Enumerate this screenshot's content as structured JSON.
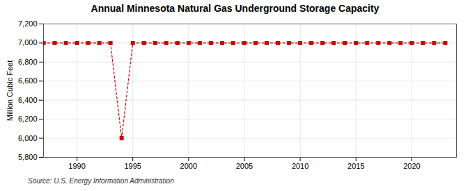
{
  "chart_data": {
    "type": "line",
    "title": "Annual Minnesota Natural Gas Underground Storage Capacity",
    "ylabel": "Million Cubic Feet",
    "annotations": [
      "Source: U.S. Energy Information Administration"
    ],
    "x": [
      1987,
      1988,
      1989,
      1990,
      1991,
      1992,
      1993,
      1994,
      1995,
      1996,
      1997,
      1998,
      1999,
      2000,
      2001,
      2002,
      2003,
      2004,
      2005,
      2006,
      2007,
      2008,
      2009,
      2010,
      2011,
      2012,
      2013,
      2014,
      2015,
      2016,
      2017,
      2018,
      2019,
      2020,
      2021,
      2022,
      2023
    ],
    "values": [
      7000,
      7000,
      7000,
      7000,
      7000,
      7000,
      7000,
      6000,
      7000,
      7000,
      7000,
      7000,
      7000,
      7000,
      7000,
      7000,
      7000,
      7000,
      7000,
      7000,
      7000,
      7000,
      7000,
      7000,
      7000,
      7000,
      7000,
      7000,
      7000,
      7000,
      7000,
      7000,
      7000,
      7000,
      7000,
      7000,
      7000
    ],
    "color": "#cc0000",
    "marker": "square",
    "line_style": "dashed",
    "xlim": [
      1987,
      2024
    ],
    "xticks": [
      1990,
      1995,
      2000,
      2005,
      2010,
      2015,
      2020
    ],
    "ylim": [
      5800,
      7200
    ],
    "yticks": [
      {
        "value": 5800,
        "label": "5,800"
      },
      {
        "value": 6000,
        "label": "6,000"
      },
      {
        "value": 6200,
        "label": "6,200"
      },
      {
        "value": 6400,
        "label": "6,400"
      },
      {
        "value": 6600,
        "label": "6,600"
      },
      {
        "value": 6800,
        "label": "6,800"
      },
      {
        "value": 7000,
        "label": "7,000"
      },
      {
        "value": 7200,
        "label": "7,200"
      }
    ],
    "grid": true
  }
}
